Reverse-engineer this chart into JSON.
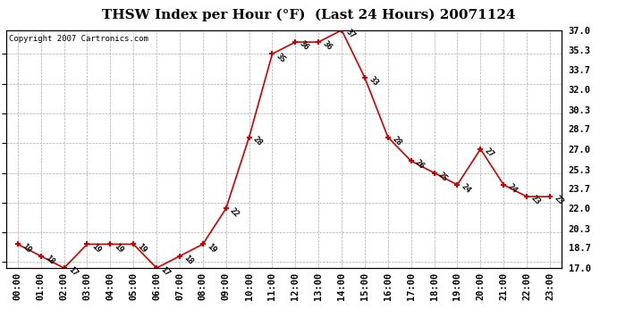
{
  "title": "THSW Index per Hour (°F)  (Last 24 Hours) 20071124",
  "copyright": "Copyright 2007 Cartronics.com",
  "hours": [
    "00:00",
    "01:00",
    "02:00",
    "03:00",
    "04:00",
    "05:00",
    "06:00",
    "07:00",
    "08:00",
    "09:00",
    "10:00",
    "11:00",
    "12:00",
    "13:00",
    "14:00",
    "15:00",
    "16:00",
    "17:00",
    "18:00",
    "19:00",
    "20:00",
    "21:00",
    "22:00",
    "23:00"
  ],
  "values": [
    19,
    18,
    17,
    19,
    19,
    19,
    17,
    18,
    19,
    22,
    28,
    35,
    36,
    36,
    37,
    33,
    28,
    26,
    25,
    24,
    27,
    24,
    23,
    23
  ],
  "ylim": [
    17.0,
    37.0
  ],
  "yticks": [
    17.0,
    18.7,
    20.3,
    22.0,
    23.7,
    25.3,
    27.0,
    28.7,
    30.3,
    32.0,
    33.7,
    35.3,
    37.0
  ],
  "line_color": "#cc0000",
  "bg_color": "#ffffff",
  "grid_color": "#aaaaaa",
  "title_fontsize": 11,
  "label_fontsize": 6.5,
  "copyright_fontsize": 6.5,
  "tick_fontsize": 7.5
}
